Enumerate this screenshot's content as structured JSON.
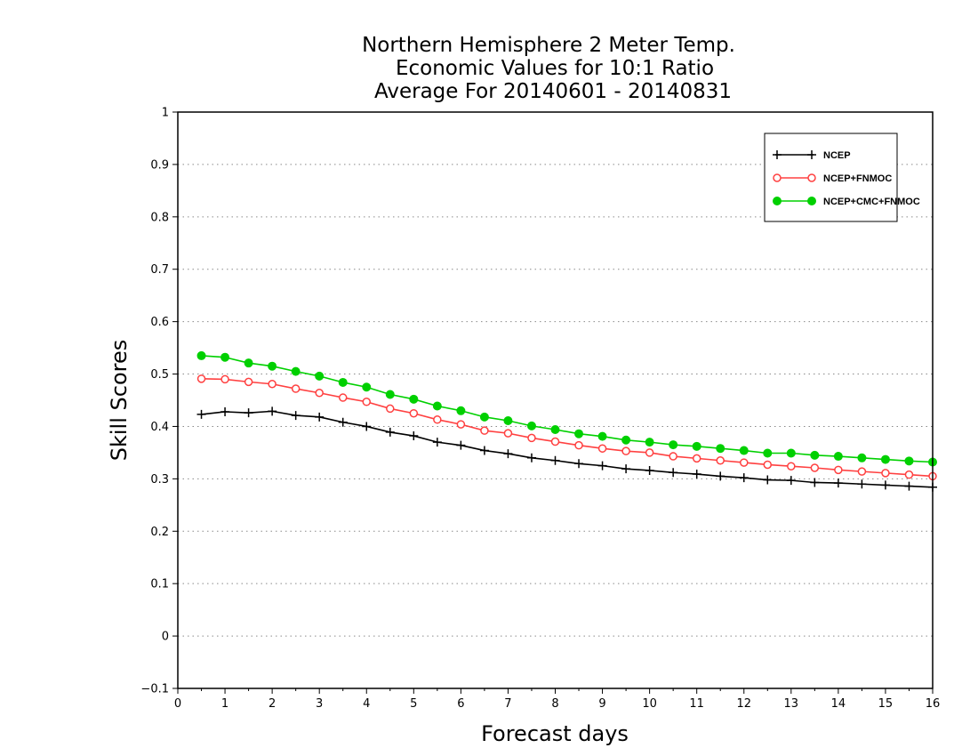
{
  "chart_data": {
    "type": "line",
    "title_lines": [
      "Northern Hemisphere 2 Meter Temp.",
      "Economic Values for 10:1 Ratio",
      "Average For 20140601 - 20140831"
    ],
    "xlabel": "Forecast days",
    "ylabel": "Skill Scores",
    "xlim": [
      0,
      16
    ],
    "ylim": [
      -0.1,
      1
    ],
    "xticks": [
      "0",
      "1",
      "2",
      "3",
      "4",
      "5",
      "6",
      "7",
      "8",
      "9",
      "10",
      "11",
      "12",
      "13",
      "14",
      "15",
      "16"
    ],
    "yticks": [
      "−0.1",
      "0",
      "0.1",
      "0.2",
      "0.3",
      "0.4",
      "0.5",
      "0.6",
      "0.7",
      "0.8",
      "0.9",
      "1"
    ],
    "grid": true,
    "legend_position": "top-right",
    "x": [
      0.5,
      1,
      1.5,
      2,
      2.5,
      3,
      3.5,
      4,
      4.5,
      5,
      5.5,
      6,
      6.5,
      7,
      7.5,
      8,
      8.5,
      9,
      9.5,
      10,
      10.5,
      11,
      11.5,
      12,
      12.5,
      13,
      13.5,
      14,
      14.5,
      15,
      15.5,
      16
    ],
    "series": [
      {
        "name": "NCEP",
        "color": "#000000",
        "marker": "plus",
        "values": [
          0.423,
          0.428,
          0.426,
          0.429,
          0.421,
          0.418,
          0.408,
          0.4,
          0.389,
          0.382,
          0.37,
          0.364,
          0.354,
          0.348,
          0.34,
          0.335,
          0.329,
          0.325,
          0.319,
          0.316,
          0.312,
          0.309,
          0.305,
          0.302,
          0.298,
          0.297,
          0.293,
          0.292,
          0.29,
          0.288,
          0.286,
          0.284
        ]
      },
      {
        "name": "NCEP+FNMOC",
        "color": "#ff4040",
        "marker": "open-circle",
        "values": [
          0.491,
          0.49,
          0.485,
          0.481,
          0.472,
          0.464,
          0.455,
          0.447,
          0.434,
          0.425,
          0.413,
          0.404,
          0.392,
          0.387,
          0.378,
          0.371,
          0.364,
          0.358,
          0.353,
          0.35,
          0.343,
          0.339,
          0.335,
          0.331,
          0.327,
          0.324,
          0.321,
          0.317,
          0.314,
          0.311,
          0.308,
          0.305
        ]
      },
      {
        "name": "NCEP+CMC+FNMOC",
        "color": "#00d000",
        "marker": "filled-circle",
        "values": [
          0.535,
          0.532,
          0.521,
          0.515,
          0.505,
          0.496,
          0.484,
          0.475,
          0.461,
          0.452,
          0.439,
          0.43,
          0.418,
          0.411,
          0.401,
          0.394,
          0.386,
          0.381,
          0.374,
          0.37,
          0.365,
          0.362,
          0.358,
          0.354,
          0.349,
          0.349,
          0.345,
          0.343,
          0.34,
          0.337,
          0.334,
          0.332
        ]
      }
    ]
  }
}
